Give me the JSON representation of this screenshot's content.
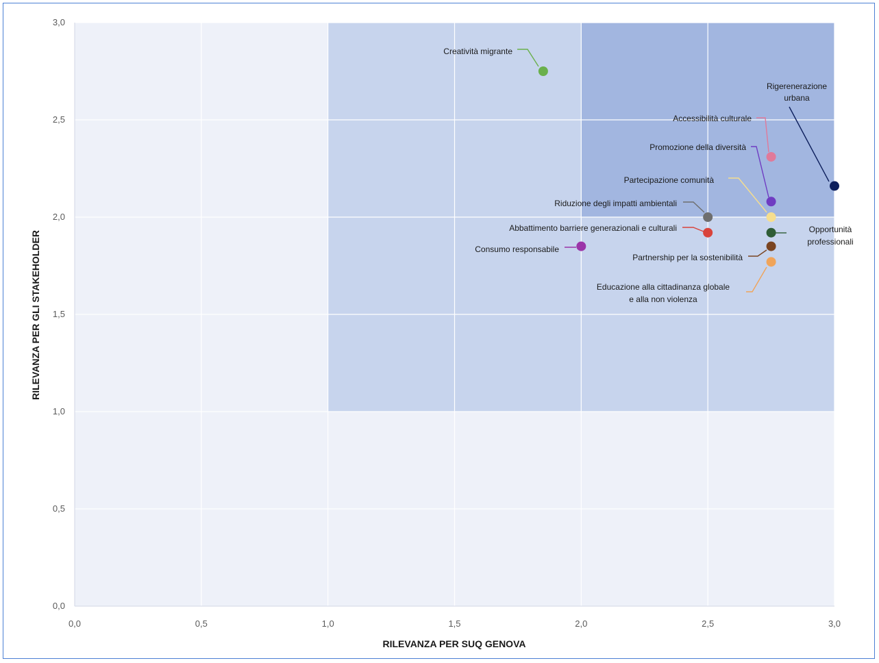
{
  "chart_data": {
    "type": "scatter",
    "xlabel": "RILEVANZA PER SUQ GENOVA",
    "ylabel": "RILEVANZA PER GLI STAKEHOLDER",
    "xlim": [
      0,
      3
    ],
    "ylim": [
      0,
      3
    ],
    "x_ticks": [
      "0,0",
      "0,5",
      "1,0",
      "1,5",
      "2,0",
      "2,5",
      "3,0"
    ],
    "y_ticks": [
      "0,0",
      "0,5",
      "1,0",
      "1,5",
      "2,0",
      "2,5",
      "3,0"
    ],
    "grid": true,
    "regions": [
      {
        "x": [
          0,
          3
        ],
        "y": [
          0,
          3
        ],
        "color": "#eef1f9"
      },
      {
        "x": [
          1,
          3
        ],
        "y": [
          1,
          3
        ],
        "color": "#c7d4ed"
      },
      {
        "x": [
          2,
          3
        ],
        "y": [
          2,
          3
        ],
        "color": "#a2b6e0"
      }
    ],
    "points": [
      {
        "label": "Creatività migrante",
        "x": 1.85,
        "y": 2.75,
        "color": "#6ab04c"
      },
      {
        "label": "Rigerenerazione\nurbana",
        "x": 3.0,
        "y": 2.16,
        "color": "#0d1f5c"
      },
      {
        "label": "Accessibilità culturale",
        "x": 2.75,
        "y": 2.31,
        "color": "#e07a9a"
      },
      {
        "label": "Promozione della diversità",
        "x": 2.75,
        "y": 2.08,
        "color": "#6f3cc2"
      },
      {
        "label": "Partecipazione comunità",
        "x": 2.75,
        "y": 2.0,
        "color": "#f6de8e"
      },
      {
        "label": "Riduzione degli impatti ambientali",
        "x": 2.5,
        "y": 2.0,
        "color": "#6e6e6e"
      },
      {
        "label": "Abbattimento barriere generazionali e culturali",
        "x": 2.5,
        "y": 1.92,
        "color": "#d9433b"
      },
      {
        "label": "Opportunità\nprofessionali",
        "x": 2.75,
        "y": 1.92,
        "color": "#2f5d36"
      },
      {
        "label": "Consumo responsabile",
        "x": 2.0,
        "y": 1.85,
        "color": "#9b35a8"
      },
      {
        "label": "Partnership per la sostenibilità",
        "x": 2.75,
        "y": 1.85,
        "color": "#7a4421"
      },
      {
        "label": "Educazione alla cittadinanza globale\ne alla non violenza",
        "x": 2.75,
        "y": 1.77,
        "color": "#f0a45a"
      }
    ]
  }
}
